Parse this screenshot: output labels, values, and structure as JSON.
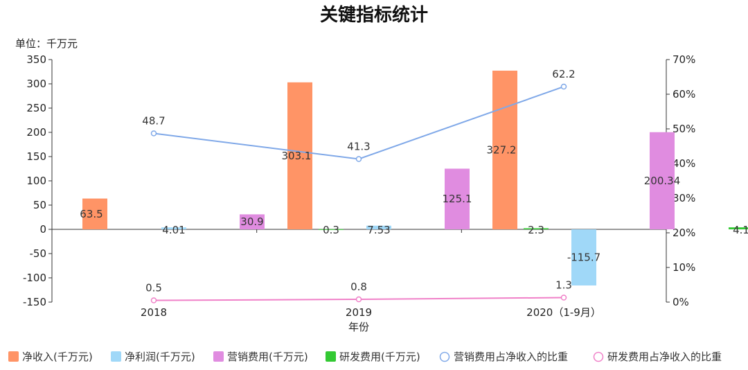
{
  "chart_data": {
    "type": "bar",
    "title": "关键指标统计",
    "unit_label": "单位：千万元",
    "xlabel": "年份",
    "categories": [
      "2018",
      "2019",
      "2020（1-9月）"
    ],
    "left_axis": {
      "min": -150,
      "max": 350,
      "step": 50,
      "ticks": [
        "350",
        "300",
        "250",
        "200",
        "150",
        "100",
        "50",
        "0",
        "-50",
        "-100",
        "-150"
      ]
    },
    "right_axis": {
      "min": 0,
      "max": 70,
      "step": 10,
      "ticks": [
        "70%",
        "60%",
        "50%",
        "40%",
        "30%",
        "20%",
        "10%",
        "0%"
      ]
    },
    "bar_series": [
      {
        "name": "净收入(千万元)",
        "color": "#FF9466",
        "values": [
          63.5,
          303.1,
          327.2
        ],
        "labels": [
          "63.5",
          "303.1",
          "327.2"
        ]
      },
      {
        "name": "净利润(千万元)",
        "color": "#A0D8F8",
        "values": [
          4.01,
          7.53,
          -115.7
        ],
        "labels": [
          "4.01",
          "7.53",
          "-115.7"
        ]
      },
      {
        "name": "营销费用(千万元)",
        "color": "#E08CE0",
        "values": [
          30.9,
          125.1,
          200.34
        ],
        "labels": [
          "30.9",
          "125.1",
          "200.34"
        ]
      },
      {
        "name": "研发费用(千万元)",
        "color": "#33C933",
        "values": [
          0.3,
          2.3,
          4.1
        ],
        "labels": [
          "0.3",
          "2.3",
          "4.1"
        ]
      }
    ],
    "line_series": [
      {
        "name": "营销费用占净收入的比重",
        "color": "#7FA8E8",
        "values": [
          48.7,
          41.3,
          62.2
        ],
        "labels": [
          "48.7",
          "41.3",
          "62.2"
        ],
        "unit": "%"
      },
      {
        "name": "研发费用占净收入的比重",
        "color": "#F080C8",
        "values": [
          0.5,
          0.8,
          1.3
        ],
        "labels": [
          "0.5",
          "0.8",
          "1.3"
        ],
        "unit": "%"
      }
    ],
    "legend_position": "bottom"
  }
}
